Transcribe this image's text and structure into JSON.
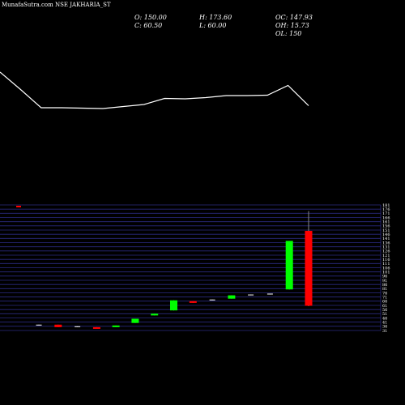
{
  "chart_data": {
    "type": "candlestick",
    "title": "MunafaSutra.com NSE JAKHARIA_ST",
    "ohlc_text": {
      "open": "O: 150.00",
      "high": "H: 173.60",
      "oc": "OC: 147.93",
      "close": "C: 60.50",
      "low": "L: 60.00",
      "oh": "OH: 15.73",
      "ol": "OL: 150"
    },
    "price_ticks": [
      "181",
      "176",
      "171",
      "166",
      "161",
      "156",
      "151",
      "146",
      "141",
      "136",
      "131",
      "126",
      "121",
      "116",
      "111",
      "106",
      "101",
      "96",
      "91",
      "86",
      "81",
      "76",
      "71",
      "66",
      "61",
      "56",
      "51",
      "46",
      "41",
      "36",
      "31"
    ],
    "price_range": [
      31,
      181
    ],
    "line_series": [
      108,
      65,
      20,
      20,
      19,
      18,
      23,
      28,
      43,
      42,
      45,
      50,
      50,
      51,
      75,
      25
    ],
    "candles": [
      {
        "open": 38,
        "high": 38,
        "low": 37,
        "close": 37,
        "dir": "flat"
      },
      {
        "open": 38,
        "high": 38,
        "low": 35,
        "close": 35,
        "dir": "down"
      },
      {
        "open": 36,
        "high": 36,
        "low": 35,
        "close": 36,
        "dir": "flat"
      },
      {
        "open": 35,
        "high": 35,
        "low": 33,
        "close": 33,
        "dir": "down"
      },
      {
        "open": 35,
        "high": 37,
        "low": 35,
        "close": 37,
        "dir": "up"
      },
      {
        "open": 40,
        "high": 45,
        "low": 40,
        "close": 45,
        "dir": "up"
      },
      {
        "open": 49,
        "high": 51,
        "low": 49,
        "close": 51,
        "dir": "up"
      },
      {
        "open": 55,
        "high": 67,
        "low": 55,
        "close": 67,
        "dir": "up"
      },
      {
        "open": 66,
        "high": 66,
        "low": 64,
        "close": 64,
        "dir": "down"
      },
      {
        "open": 68,
        "high": 68,
        "low": 67,
        "close": 67,
        "dir": "flat"
      },
      {
        "open": 69,
        "high": 73,
        "low": 69,
        "close": 73,
        "dir": "up"
      },
      {
        "open": 74,
        "high": 74,
        "low": 73,
        "close": 73,
        "dir": "flat"
      },
      {
        "open": 75,
        "high": 75,
        "low": 74,
        "close": 74,
        "dir": "flat"
      },
      {
        "open": 80,
        "high": 138,
        "low": 80,
        "close": 138,
        "dir": "up"
      },
      {
        "open": 150,
        "high": 173.6,
        "low": 60,
        "close": 60.5,
        "dir": "down"
      }
    ],
    "colors": {
      "background": "#000000",
      "up": "#00ff00",
      "down": "#ff0000",
      "flat": "#ffffff",
      "line": "#ffffff",
      "grid": "#2a2a80",
      "text": "#ffffff"
    }
  }
}
